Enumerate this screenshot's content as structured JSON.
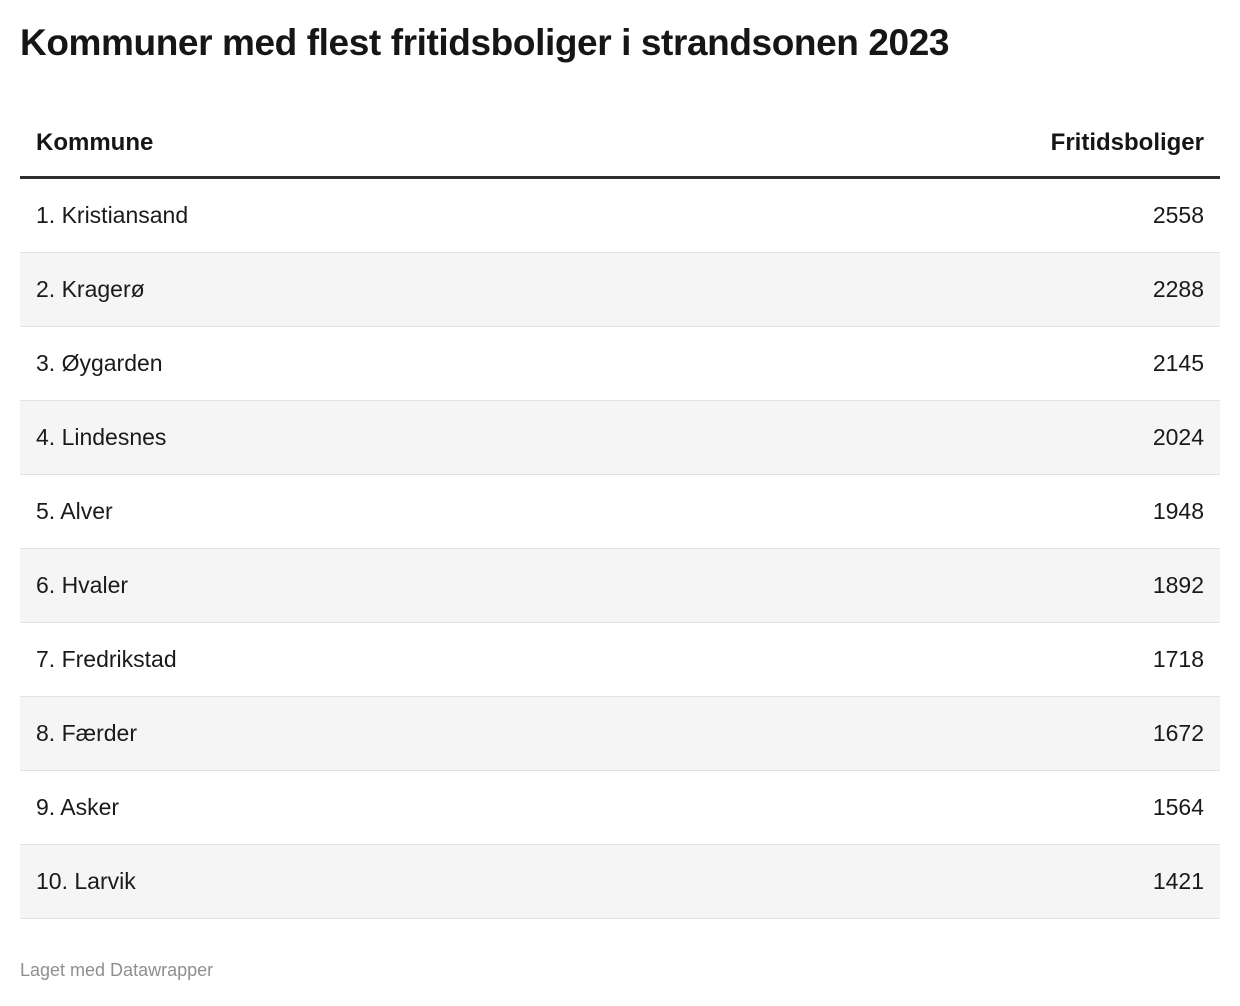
{
  "title": "Kommuner med flest fritidsboliger i strandsonen 2023",
  "table": {
    "columns": {
      "kommune": "Kommune",
      "fritidsboliger": "Fritidsboliger"
    },
    "rows": [
      {
        "label": "1. Kristiansand",
        "value": "2558"
      },
      {
        "label": "2. Kragerø",
        "value": "2288"
      },
      {
        "label": "3. Øygarden",
        "value": "2145"
      },
      {
        "label": "4. Lindesnes",
        "value": "2024"
      },
      {
        "label": "5. Alver",
        "value": "1948"
      },
      {
        "label": "6. Hvaler",
        "value": "1892"
      },
      {
        "label": "7. Fredrikstad",
        "value": "1718"
      },
      {
        "label": "8. Færder",
        "value": "1672"
      },
      {
        "label": "9. Asker",
        "value": "1564"
      },
      {
        "label": "10. Larvik",
        "value": "1421"
      }
    ]
  },
  "footer": {
    "attribution": "Laget med Datawrapper"
  },
  "colors": {
    "background": "#ffffff",
    "row_alt_background": "#f5f5f5",
    "row_divider": "#e2e2e2",
    "header_border": "#2e2e2e",
    "text": "#1a1a1a",
    "title_text": "#161616",
    "muted_text": "#8f8f8f"
  },
  "chart_data": {
    "type": "table",
    "title": "Kommuner med flest fritidsboliger i strandsonen 2023",
    "columns": [
      "Kommune",
      "Fritidsboliger"
    ],
    "rows": [
      {
        "rank": 1,
        "kommune": "Kristiansand",
        "fritidsboliger": 2558
      },
      {
        "rank": 2,
        "kommune": "Kragerø",
        "fritidsboliger": 2288
      },
      {
        "rank": 3,
        "kommune": "Øygarden",
        "fritidsboliger": 2145
      },
      {
        "rank": 4,
        "kommune": "Lindesnes",
        "fritidsboliger": 2024
      },
      {
        "rank": 5,
        "kommune": "Alver",
        "fritidsboliger": 1948
      },
      {
        "rank": 6,
        "kommune": "Hvaler",
        "fritidsboliger": 1892
      },
      {
        "rank": 7,
        "kommune": "Fredrikstad",
        "fritidsboliger": 1718
      },
      {
        "rank": 8,
        "kommune": "Færder",
        "fritidsboliger": 1672
      },
      {
        "rank": 9,
        "kommune": "Asker",
        "fritidsboliger": 1564
      },
      {
        "rank": 10,
        "kommune": "Larvik",
        "fritidsboliger": 1421
      }
    ],
    "layout": {
      "striped_rows": true,
      "value_alignment": "right",
      "footer": "Laget med Datawrapper"
    }
  }
}
